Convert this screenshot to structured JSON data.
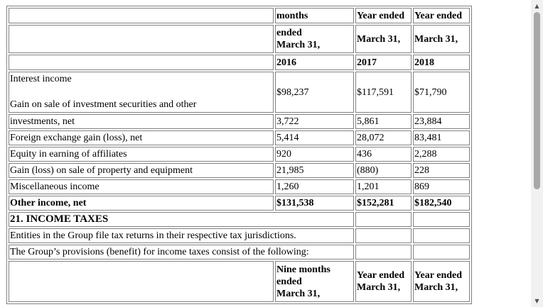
{
  "header_rows": [
    [
      "",
      "months",
      "Year ended",
      "Year ended"
    ],
    [
      "",
      "ended\nMarch 31,",
      "March 31,",
      "March 31,"
    ],
    [
      "",
      "2016",
      "2017",
      "2018"
    ]
  ],
  "interest_row": [
    "Interest income",
    "",
    "",
    ""
  ],
  "gain_row": [
    "Gain on sale of investment securities and other",
    "$98,237",
    "$117,591",
    "$71,790"
  ],
  "rows": [
    [
      "investments, net",
      "3,722",
      "5,861",
      "23,884"
    ],
    [
      "Foreign exchange gain (loss), net",
      "5,414",
      "28,072",
      "83,481"
    ],
    [
      "Equity in earning of affiliates",
      "920",
      "436",
      "2,288"
    ],
    [
      "Gain (loss) on sale of property and equipment",
      "21,985",
      "(880)",
      "228"
    ],
    [
      "Miscellaneous income",
      "1,260",
      "1,201",
      "869"
    ]
  ],
  "total_row": [
    "Other income, net",
    "$131,538",
    "$152,281",
    "$182,540"
  ],
  "section_title": "21. INCOME TAXES",
  "notes": [
    "Entities in the Group file tax returns in their respective tax jurisdictions.",
    "The Group’s provisions (benefit) for income taxes consist of the following:"
  ],
  "bottom_header": [
    "",
    "Nine months\nended\nMarch 31,",
    "Year ended\nMarch 31,",
    "Year ended\nMarch 31,"
  ],
  "scrollbar": {
    "up_icon": "▲",
    "down_icon": "▼"
  }
}
